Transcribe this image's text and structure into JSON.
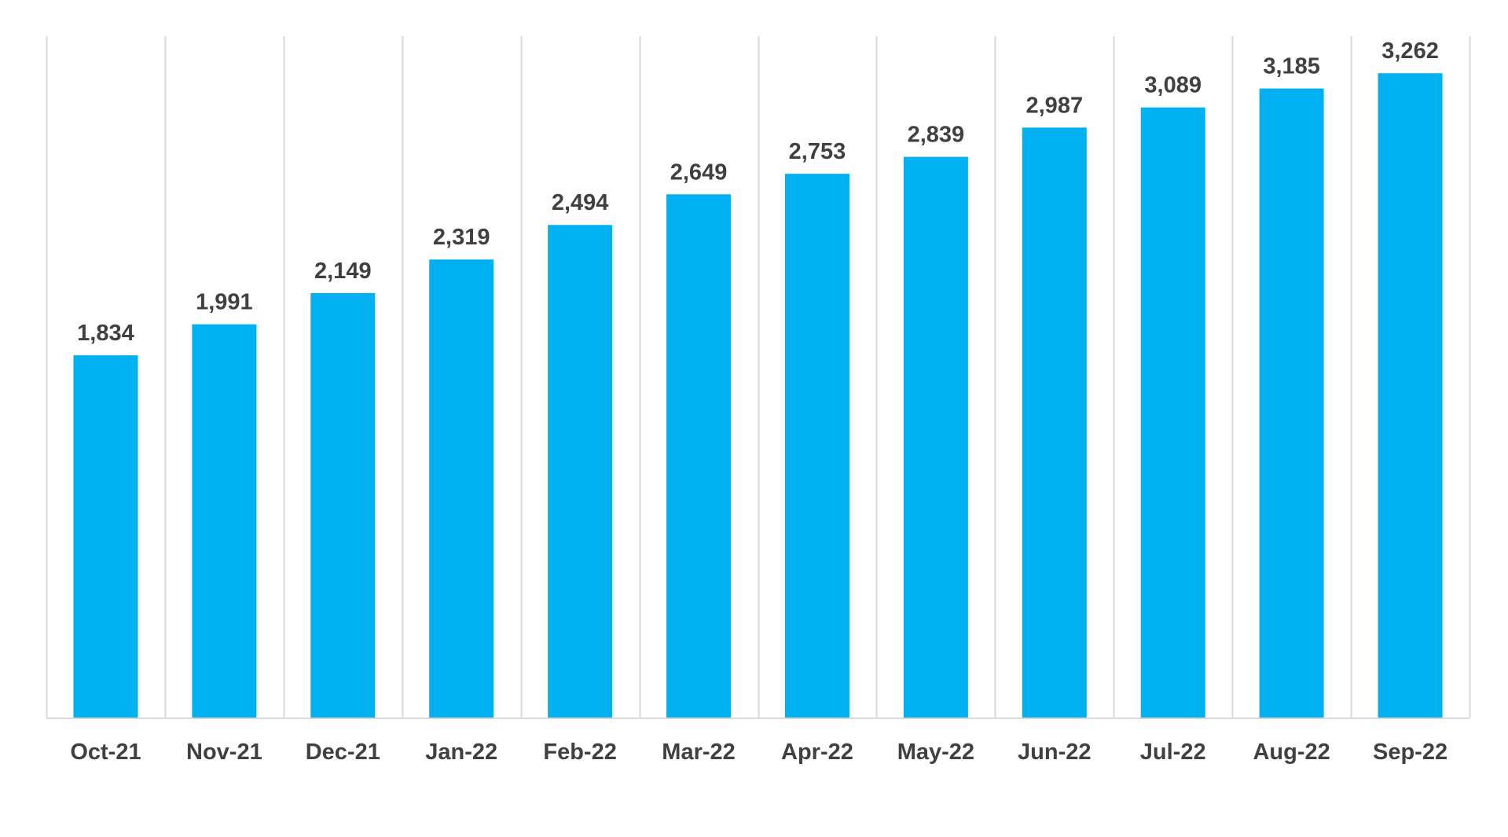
{
  "chart_data": {
    "type": "bar",
    "title": "",
    "xlabel": "",
    "ylabel": "",
    "categories": [
      "Oct-21",
      "Nov-21",
      "Dec-21",
      "Jan-22",
      "Feb-22",
      "Mar-22",
      "Apr-22",
      "May-22",
      "Jun-22",
      "Jul-22",
      "Aug-22",
      "Sep-22"
    ],
    "values": [
      1834,
      1991,
      2149,
      2319,
      2494,
      2649,
      2753,
      2839,
      2987,
      3089,
      3185,
      3262
    ],
    "value_labels": [
      "1,834",
      "1,991",
      "2,149",
      "2,319",
      "2,494",
      "2,649",
      "2,753",
      "2,839",
      "2,987",
      "3,089",
      "3,185",
      "3,262"
    ],
    "ylim": [
      0,
      3450
    ],
    "grid": "vertical",
    "legend": "none",
    "bar_color": "#00B0F0",
    "gridline_color": "#D9D9D9",
    "label_color": "#404040"
  }
}
